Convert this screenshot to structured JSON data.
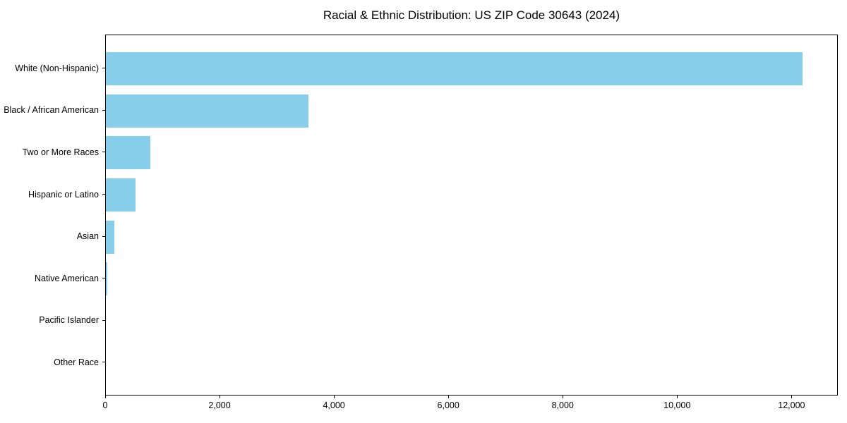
{
  "chart_data": {
    "type": "bar",
    "orientation": "horizontal",
    "title": "Racial & Ethnic Distribution: US ZIP Code 30643 (2024)",
    "categories": [
      "White (Non-Hispanic)",
      "Black / African American",
      "Two or More Races",
      "Hispanic or Latino",
      "Asian",
      "Native American",
      "Pacific Islander",
      "Other Race"
    ],
    "values": [
      12200,
      3550,
      775,
      520,
      150,
      20,
      0,
      0
    ],
    "xlabel": "",
    "ylabel": "",
    "xlim": [
      0,
      12810
    ],
    "x_ticks": [
      0,
      2000,
      4000,
      6000,
      8000,
      10000,
      12000
    ],
    "x_tick_labels": [
      "0",
      "2,000",
      "4,000",
      "6,000",
      "8,000",
      "10,000",
      "12,000"
    ],
    "bar_color": "#87CEEB",
    "frame_color": "#000000",
    "text_color": "#000000",
    "background_color": "#ffffff",
    "grid": false,
    "legend": false
  }
}
